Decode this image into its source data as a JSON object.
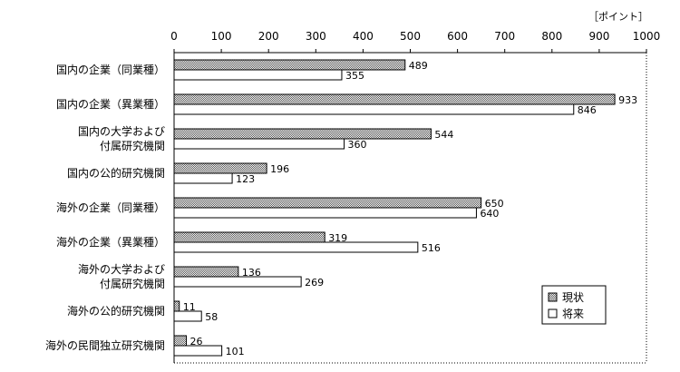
{
  "chart_data": {
    "type": "bar",
    "orientation": "horizontal",
    "unit_label": "［ポイント］",
    "xlim": [
      0,
      1000
    ],
    "xticks": [
      0,
      100,
      200,
      300,
      400,
      500,
      600,
      700,
      800,
      900,
      1000
    ],
    "x_axis_position": "top",
    "grid": false,
    "legend_position": "bottom-right",
    "categories": [
      [
        "国内の企業（同業種）"
      ],
      [
        "国内の企業（異業種）"
      ],
      [
        "国内の大学および",
        "付属研究機関"
      ],
      [
        "国内の公的研究機関"
      ],
      [
        "海外の企業（同業種）"
      ],
      [
        "海外の企業（異業種）"
      ],
      [
        "海外の大学および",
        "付属研究機関"
      ],
      [
        "海外の公的研究機関"
      ],
      [
        "海外の民間独立研究機関"
      ]
    ],
    "series": [
      {
        "name": "現状",
        "values": [
          489,
          933,
          544,
          196,
          650,
          319,
          136,
          11,
          26
        ],
        "fill": "hatched-gray"
      },
      {
        "name": "将来",
        "values": [
          355,
          846,
          360,
          123,
          640,
          516,
          269,
          58,
          101
        ],
        "fill": "white"
      }
    ]
  }
}
